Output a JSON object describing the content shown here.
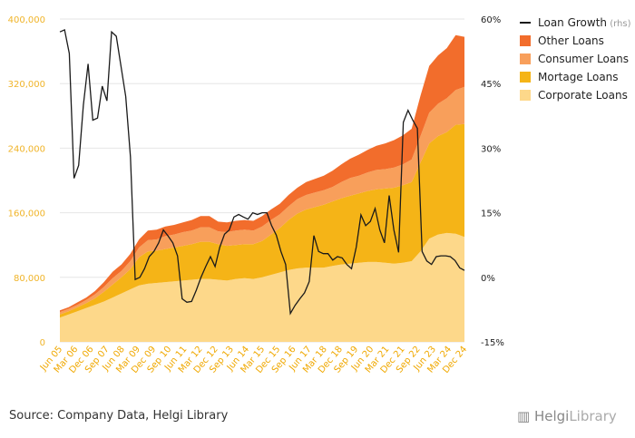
{
  "chart_data": {
    "type": "area",
    "x_ticks": [
      "Jun 05",
      "Mar 06",
      "Dec 06",
      "Sep 07",
      "Jun 08",
      "Mar 09",
      "Dec 09",
      "Sep 10",
      "Jun 11",
      "Mar 12",
      "Dec 12",
      "Sep 13",
      "Jun 14",
      "Mar 15",
      "Dec 15",
      "Sep 16",
      "Jun 17",
      "Mar 18",
      "Dec 18",
      "Sep 19",
      "Jun 20",
      "Mar 21",
      "Dec 21",
      "Sep 22",
      "Jun 23",
      "Mar 24",
      "Dec 24"
    ],
    "y_left": {
      "ticks": [
        "0",
        "80,000",
        "160,000",
        "240,000",
        "320,000",
        "400,000"
      ],
      "ylim": [
        0,
        400000
      ]
    },
    "y_right": {
      "ticks": [
        "-15%",
        "0%",
        "15%",
        "30%",
        "45%",
        "60%"
      ],
      "ylim": [
        -15,
        60
      ]
    },
    "series": [
      {
        "name": "Corporate Loans",
        "color": "#fdd88a",
        "stack": true,
        "values": [
          30000,
          34000,
          38000,
          42000,
          46000,
          50000,
          55000,
          60000,
          65000,
          70000,
          72000,
          73000,
          74000,
          75000,
          76000,
          77000,
          78000,
          78000,
          77000,
          76000,
          78000,
          79000,
          78000,
          80000,
          83000,
          86000,
          89000,
          91000,
          92000,
          92000,
          92000,
          94000,
          96000,
          97000,
          98000,
          99000,
          99000,
          98000,
          97000,
          98000,
          100000,
          112000,
          128000,
          133000,
          135000,
          134000,
          130000
        ]
      },
      {
        "name": "Mortage Loans",
        "color": "#f5b417",
        "stack": true,
        "values": [
          4000,
          4000,
          5000,
          6000,
          8000,
          12000,
          16000,
          20000,
          25000,
          35000,
          40000,
          40000,
          41000,
          42000,
          43000,
          44000,
          46000,
          46000,
          44000,
          43000,
          42000,
          42000,
          43000,
          45000,
          50000,
          55000,
          62000,
          68000,
          72000,
          75000,
          78000,
          80000,
          82000,
          84000,
          86000,
          88000,
          90000,
          92000,
          94000,
          96000,
          98000,
          110000,
          118000,
          122000,
          125000,
          135000,
          140000
        ]
      },
      {
        "name": "Consumer Loans",
        "color": "#f89f5b",
        "stack": true,
        "values": [
          3000,
          3000,
          3000,
          4000,
          5000,
          6000,
          8000,
          8000,
          10000,
          12000,
          14000,
          14000,
          16000,
          16000,
          17000,
          17000,
          18000,
          18000,
          16000,
          17000,
          18000,
          18000,
          17000,
          18000,
          18000,
          17000,
          17000,
          18000,
          18000,
          18000,
          18000,
          18000,
          20000,
          22000,
          22000,
          23000,
          24000,
          24000,
          25000,
          26000,
          28000,
          33000,
          38000,
          40000,
          42000,
          43000,
          46000
        ]
      },
      {
        "name": "Other Loans",
        "color": "#f26d2c",
        "stack": true,
        "values": [
          2000,
          2000,
          3000,
          3000,
          4000,
          6000,
          8000,
          8000,
          9000,
          10000,
          12000,
          12000,
          12000,
          12000,
          12000,
          13000,
          14000,
          14000,
          12000,
          12000,
          12000,
          12000,
          12000,
          13000,
          13000,
          13000,
          14000,
          14000,
          16000,
          17000,
          18000,
          20000,
          22000,
          24000,
          26000,
          28000,
          30000,
          32000,
          34000,
          36000,
          38000,
          50000,
          58000,
          60000,
          62000,
          68000,
          62000
        ]
      },
      {
        "name": "Loan Growth",
        "axis": "rhs",
        "color": "#1a1a1a",
        "type": "line",
        "values": [
          57,
          57.5,
          52,
          23,
          26,
          40,
          49.6,
          36.5,
          37,
          44.4,
          41,
          57,
          56,
          49,
          42,
          28,
          -0.5,
          0,
          2,
          4.8,
          6,
          8,
          11,
          9.6,
          8,
          5,
          -5,
          -5.8,
          -5.6,
          -3,
          0,
          2.5,
          4.8,
          2.5,
          7,
          10,
          11,
          14,
          14.6,
          14,
          13.5,
          15,
          14.6,
          15,
          15,
          12,
          9.8,
          6,
          3,
          -8.4,
          -6.5,
          -5,
          -3.6,
          -1,
          9.7,
          6,
          5.5,
          5.5,
          4,
          4.8,
          4.5,
          3,
          2,
          7,
          14.5,
          12,
          13,
          16,
          11,
          8,
          19,
          11,
          5.8,
          36,
          38.8,
          36.5,
          34.6,
          6,
          3.8,
          3,
          4.8,
          5,
          5,
          4.8,
          3.9,
          2.2,
          1.6
        ]
      }
    ],
    "legend": [
      {
        "label": "Loan Growth",
        "suffix": "(rhs)",
        "kind": "line",
        "color": "#1a1a1a"
      },
      {
        "label": "Other Loans",
        "kind": "box",
        "color": "#f26d2c"
      },
      {
        "label": "Consumer Loans",
        "kind": "box",
        "color": "#f89f5b"
      },
      {
        "label": "Mortage Loans",
        "kind": "box",
        "color": "#f5b417"
      },
      {
        "label": "Corporate Loans",
        "kind": "box",
        "color": "#fdd88a"
      }
    ],
    "legend_position": "top-right",
    "grid": true
  },
  "footer": {
    "source": "Source: Company Data, Helgi Library",
    "logo_main": "Helgi",
    "logo_sub": "Library"
  }
}
